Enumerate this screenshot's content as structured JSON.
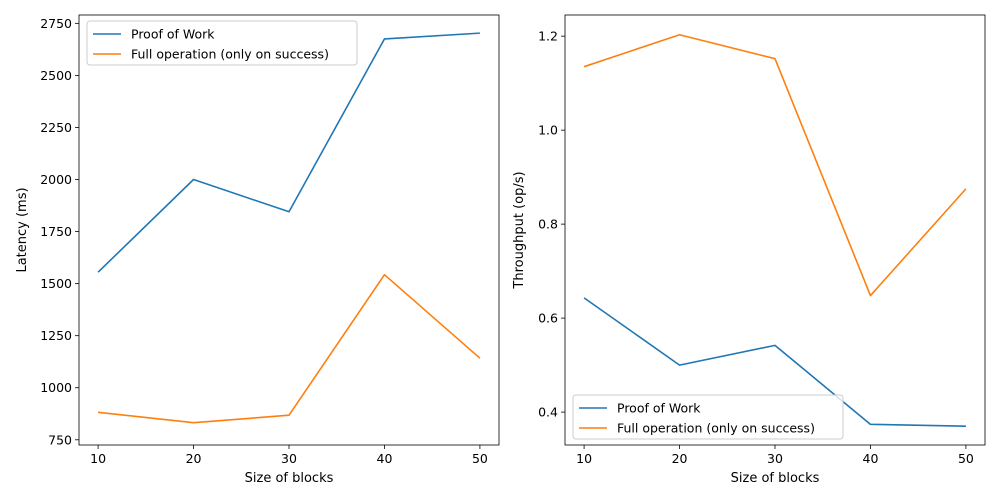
{
  "chart_data": [
    {
      "type": "line",
      "xlabel": "Size of blocks",
      "ylabel": "Latency (ms)",
      "x": [
        10,
        20,
        30,
        40,
        50
      ],
      "xticks": [
        10,
        20,
        30,
        40,
        50
      ],
      "yticks": [
        750,
        1000,
        1250,
        1500,
        1750,
        2000,
        2250,
        2500,
        2750
      ],
      "xlim": [
        8,
        52
      ],
      "ylim": [
        725,
        2790
      ],
      "grid": false,
      "legend_position": "top-left",
      "series": [
        {
          "name": "Proof of Work",
          "color": "#1f77b4",
          "values": [
            1555,
            2000,
            1845,
            2675,
            2703
          ]
        },
        {
          "name": "Full operation (only on success)",
          "color": "#ff7f0e",
          "values": [
            882,
            832,
            868,
            1543,
            1142
          ]
        }
      ]
    },
    {
      "type": "line",
      "xlabel": "Size of blocks",
      "ylabel": "Throughput (op/s)",
      "x": [
        10,
        20,
        30,
        40,
        50
      ],
      "xticks": [
        10,
        20,
        30,
        40,
        50
      ],
      "yticks": [
        0.4,
        0.6,
        0.8,
        1.0,
        1.2
      ],
      "ytick_labels": [
        "0.4",
        "0.6",
        "0.8",
        "1.0",
        "1.2"
      ],
      "xlim": [
        8,
        52
      ],
      "ylim": [
        0.33,
        1.245
      ],
      "grid": false,
      "legend_position": "bottom-left",
      "series": [
        {
          "name": "Proof of Work",
          "color": "#1f77b4",
          "values": [
            0.643,
            0.5,
            0.542,
            0.374,
            0.37
          ]
        },
        {
          "name": "Full operation (only on success)",
          "color": "#ff7f0e",
          "values": [
            1.135,
            1.203,
            1.152,
            0.648,
            0.875
          ]
        }
      ]
    }
  ]
}
